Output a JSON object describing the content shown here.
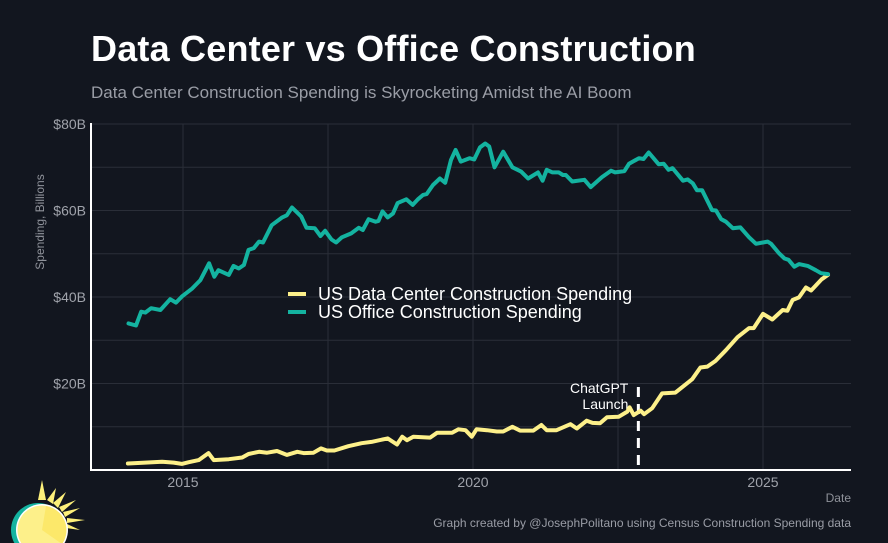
{
  "header": {
    "title": "Data Center vs Office Construction",
    "subtitle": "Data Center Construction Spending is Skyrocketing Amidst the AI Boom"
  },
  "footer": {
    "caption": "Graph created by @JosephPolitano using Census Construction Spending data"
  },
  "logo": {
    "icon": "sun-icon"
  },
  "chart_data": {
    "type": "line",
    "title": "Data Center vs Office Construction",
    "subtitle": "Data Center Construction Spending is Skyrocketing Amidst the AI Boom",
    "xlabel": "Date",
    "ylabel": "Spending, Billions",
    "xlim": [
      2013.85,
      2026.95
    ],
    "ylim": [
      0,
      80
    ],
    "xticks": [
      2015,
      2020,
      2025
    ],
    "xtick_labels": [
      "2015",
      "2020",
      "2025"
    ],
    "yticks": [
      20,
      40,
      60,
      80
    ],
    "ytick_labels": [
      "$20B",
      "$40B",
      "$60B",
      "$80B"
    ],
    "minor_yticks": [
      10,
      30,
      50,
      70
    ],
    "minor_xticks": [
      2017.5,
      2022.5
    ],
    "grid": true,
    "legend_position": "center",
    "colors": {
      "background": "#12161f",
      "grid": "#2a2e38",
      "axis": "#ffffff",
      "data_center": "#fdf08a",
      "office": "#14b3a0"
    },
    "series": [
      {
        "name": "US Data Center Construction Spending",
        "color": "#fdf08a",
        "points": [
          [
            2014.05,
            1.5
          ],
          [
            2014.35,
            1.7
          ],
          [
            2014.64,
            1.9
          ],
          [
            2014.84,
            1.7
          ],
          [
            2014.98,
            1.4
          ],
          [
            2015.1,
            1.8
          ],
          [
            2015.27,
            2.3
          ],
          [
            2015.44,
            3.9
          ],
          [
            2015.53,
            2.3
          ],
          [
            2015.79,
            2.5
          ],
          [
            2016.02,
            2.9
          ],
          [
            2016.13,
            3.7
          ],
          [
            2016.31,
            4.2
          ],
          [
            2016.45,
            4.0
          ],
          [
            2016.62,
            4.4
          ],
          [
            2016.79,
            3.5
          ],
          [
            2016.97,
            4.2
          ],
          [
            2017.08,
            3.9
          ],
          [
            2017.25,
            4.0
          ],
          [
            2017.38,
            5.0
          ],
          [
            2017.48,
            4.5
          ],
          [
            2017.61,
            4.5
          ],
          [
            2017.85,
            5.5
          ],
          [
            2018.08,
            6.2
          ],
          [
            2018.25,
            6.5
          ],
          [
            2018.53,
            7.3
          ],
          [
            2018.69,
            5.9
          ],
          [
            2018.78,
            7.7
          ],
          [
            2018.86,
            6.9
          ],
          [
            2018.97,
            7.7
          ],
          [
            2019.26,
            7.5
          ],
          [
            2019.38,
            8.6
          ],
          [
            2019.64,
            8.6
          ],
          [
            2019.75,
            9.4
          ],
          [
            2019.87,
            9.2
          ],
          [
            2019.98,
            7.7
          ],
          [
            2020.06,
            9.4
          ],
          [
            2020.24,
            9.2
          ],
          [
            2020.41,
            8.9
          ],
          [
            2020.52,
            8.9
          ],
          [
            2020.68,
            10.0
          ],
          [
            2020.81,
            9.1
          ],
          [
            2021.04,
            9.1
          ],
          [
            2021.18,
            10.4
          ],
          [
            2021.27,
            9.2
          ],
          [
            2021.44,
            9.2
          ],
          [
            2021.68,
            10.6
          ],
          [
            2021.79,
            9.6
          ],
          [
            2021.96,
            11.4
          ],
          [
            2022.06,
            10.9
          ],
          [
            2022.19,
            10.8
          ],
          [
            2022.31,
            12.2
          ],
          [
            2022.51,
            12.3
          ],
          [
            2022.66,
            13.5
          ],
          [
            2022.7,
            14.5
          ],
          [
            2022.77,
            12.7
          ],
          [
            2022.89,
            13.7
          ],
          [
            2022.95,
            12.9
          ],
          [
            2023.09,
            14.3
          ],
          [
            2023.26,
            17.7
          ],
          [
            2023.49,
            17.9
          ],
          [
            2023.78,
            21.0
          ],
          [
            2023.92,
            23.7
          ],
          [
            2024.04,
            23.9
          ],
          [
            2024.18,
            25.2
          ],
          [
            2024.36,
            27.7
          ],
          [
            2024.56,
            30.7
          ],
          [
            2024.76,
            32.8
          ],
          [
            2024.84,
            32.8
          ],
          [
            2025.0,
            36.1
          ],
          [
            2025.16,
            34.8
          ],
          [
            2025.34,
            37.0
          ],
          [
            2025.42,
            36.8
          ],
          [
            2025.51,
            39.3
          ],
          [
            2025.62,
            39.9
          ],
          [
            2025.74,
            42.2
          ],
          [
            2025.83,
            41.5
          ],
          [
            2025.92,
            42.8
          ],
          [
            2026.01,
            44.1
          ],
          [
            2026.12,
            45.1
          ]
        ]
      },
      {
        "name": "US Office Construction Spending",
        "color": "#14b3a0",
        "points": [
          [
            2014.06,
            33.9
          ],
          [
            2014.19,
            33.4
          ],
          [
            2014.28,
            36.6
          ],
          [
            2014.35,
            36.4
          ],
          [
            2014.45,
            37.4
          ],
          [
            2014.61,
            37.0
          ],
          [
            2014.78,
            39.5
          ],
          [
            2014.88,
            38.7
          ],
          [
            2014.98,
            40.1
          ],
          [
            2015.16,
            42.0
          ],
          [
            2015.3,
            43.9
          ],
          [
            2015.45,
            47.8
          ],
          [
            2015.54,
            44.7
          ],
          [
            2015.61,
            46.2
          ],
          [
            2015.79,
            45.1
          ],
          [
            2015.87,
            47.2
          ],
          [
            2015.96,
            46.6
          ],
          [
            2016.05,
            47.4
          ],
          [
            2016.13,
            50.9
          ],
          [
            2016.22,
            51.3
          ],
          [
            2016.31,
            52.8
          ],
          [
            2016.38,
            52.6
          ],
          [
            2016.53,
            56.6
          ],
          [
            2016.71,
            58.4
          ],
          [
            2016.79,
            58.9
          ],
          [
            2016.88,
            60.7
          ],
          [
            2017.04,
            58.6
          ],
          [
            2017.13,
            56.0
          ],
          [
            2017.27,
            55.9
          ],
          [
            2017.37,
            54.1
          ],
          [
            2017.45,
            55.3
          ],
          [
            2017.56,
            53.3
          ],
          [
            2017.64,
            52.6
          ],
          [
            2017.74,
            53.8
          ],
          [
            2017.9,
            54.7
          ],
          [
            2018.03,
            56.0
          ],
          [
            2018.1,
            55.5
          ],
          [
            2018.2,
            58.0
          ],
          [
            2018.32,
            57.4
          ],
          [
            2018.37,
            57.6
          ],
          [
            2018.44,
            59.8
          ],
          [
            2018.53,
            58.4
          ],
          [
            2018.62,
            59.3
          ],
          [
            2018.7,
            61.7
          ],
          [
            2018.85,
            62.6
          ],
          [
            2018.96,
            61.3
          ],
          [
            2019.05,
            62.6
          ],
          [
            2019.14,
            63.6
          ],
          [
            2019.2,
            63.8
          ],
          [
            2019.31,
            65.9
          ],
          [
            2019.43,
            67.4
          ],
          [
            2019.52,
            66.4
          ],
          [
            2019.62,
            71.7
          ],
          [
            2019.7,
            74.0
          ],
          [
            2019.79,
            71.3
          ],
          [
            2019.94,
            72.1
          ],
          [
            2020.02,
            71.8
          ],
          [
            2020.02,
            71.8
          ],
          [
            2020.12,
            74.6
          ],
          [
            2020.21,
            75.5
          ],
          [
            2020.28,
            74.8
          ],
          [
            2020.37,
            70.0
          ],
          [
            2020.52,
            73.6
          ],
          [
            2020.68,
            70.0
          ],
          [
            2020.83,
            69.0
          ],
          [
            2020.95,
            67.4
          ],
          [
            2021.12,
            68.8
          ],
          [
            2021.2,
            66.9
          ],
          [
            2021.27,
            69.4
          ],
          [
            2021.37,
            68.8
          ],
          [
            2021.48,
            68.8
          ],
          [
            2021.55,
            68.2
          ],
          [
            2021.6,
            68.2
          ],
          [
            2021.71,
            66.7
          ],
          [
            2021.92,
            67.1
          ],
          [
            2022.03,
            65.4
          ],
          [
            2022.22,
            67.7
          ],
          [
            2022.38,
            69.2
          ],
          [
            2022.45,
            68.8
          ],
          [
            2022.61,
            69.1
          ],
          [
            2022.69,
            70.8
          ],
          [
            2022.86,
            72.1
          ],
          [
            2022.94,
            71.9
          ],
          [
            2023.03,
            73.4
          ],
          [
            2023.2,
            70.7
          ],
          [
            2023.29,
            70.8
          ],
          [
            2023.37,
            69.4
          ],
          [
            2023.44,
            69.8
          ],
          [
            2023.62,
            66.9
          ],
          [
            2023.7,
            67.2
          ],
          [
            2023.79,
            66.3
          ],
          [
            2023.86,
            64.7
          ],
          [
            2023.95,
            64.7
          ],
          [
            2024.12,
            60.1
          ],
          [
            2024.19,
            60.0
          ],
          [
            2024.28,
            58.0
          ],
          [
            2024.36,
            57.4
          ],
          [
            2024.48,
            55.9
          ],
          [
            2024.61,
            56.1
          ],
          [
            2024.76,
            53.8
          ],
          [
            2024.88,
            52.3
          ],
          [
            2025.08,
            52.8
          ],
          [
            2025.14,
            52.3
          ],
          [
            2025.27,
            50.2
          ],
          [
            2025.37,
            48.9
          ],
          [
            2025.44,
            48.6
          ],
          [
            2025.54,
            47.0
          ],
          [
            2025.62,
            47.6
          ],
          [
            2025.77,
            47.2
          ],
          [
            2025.91,
            46.2
          ],
          [
            2026.0,
            45.5
          ],
          [
            2026.12,
            45.3
          ]
        ]
      }
    ],
    "annotations": [
      {
        "x": 2022.92,
        "label_lines": [
          "ChatGPT",
          "Launch"
        ],
        "style": "dashed-vertical"
      }
    ]
  }
}
